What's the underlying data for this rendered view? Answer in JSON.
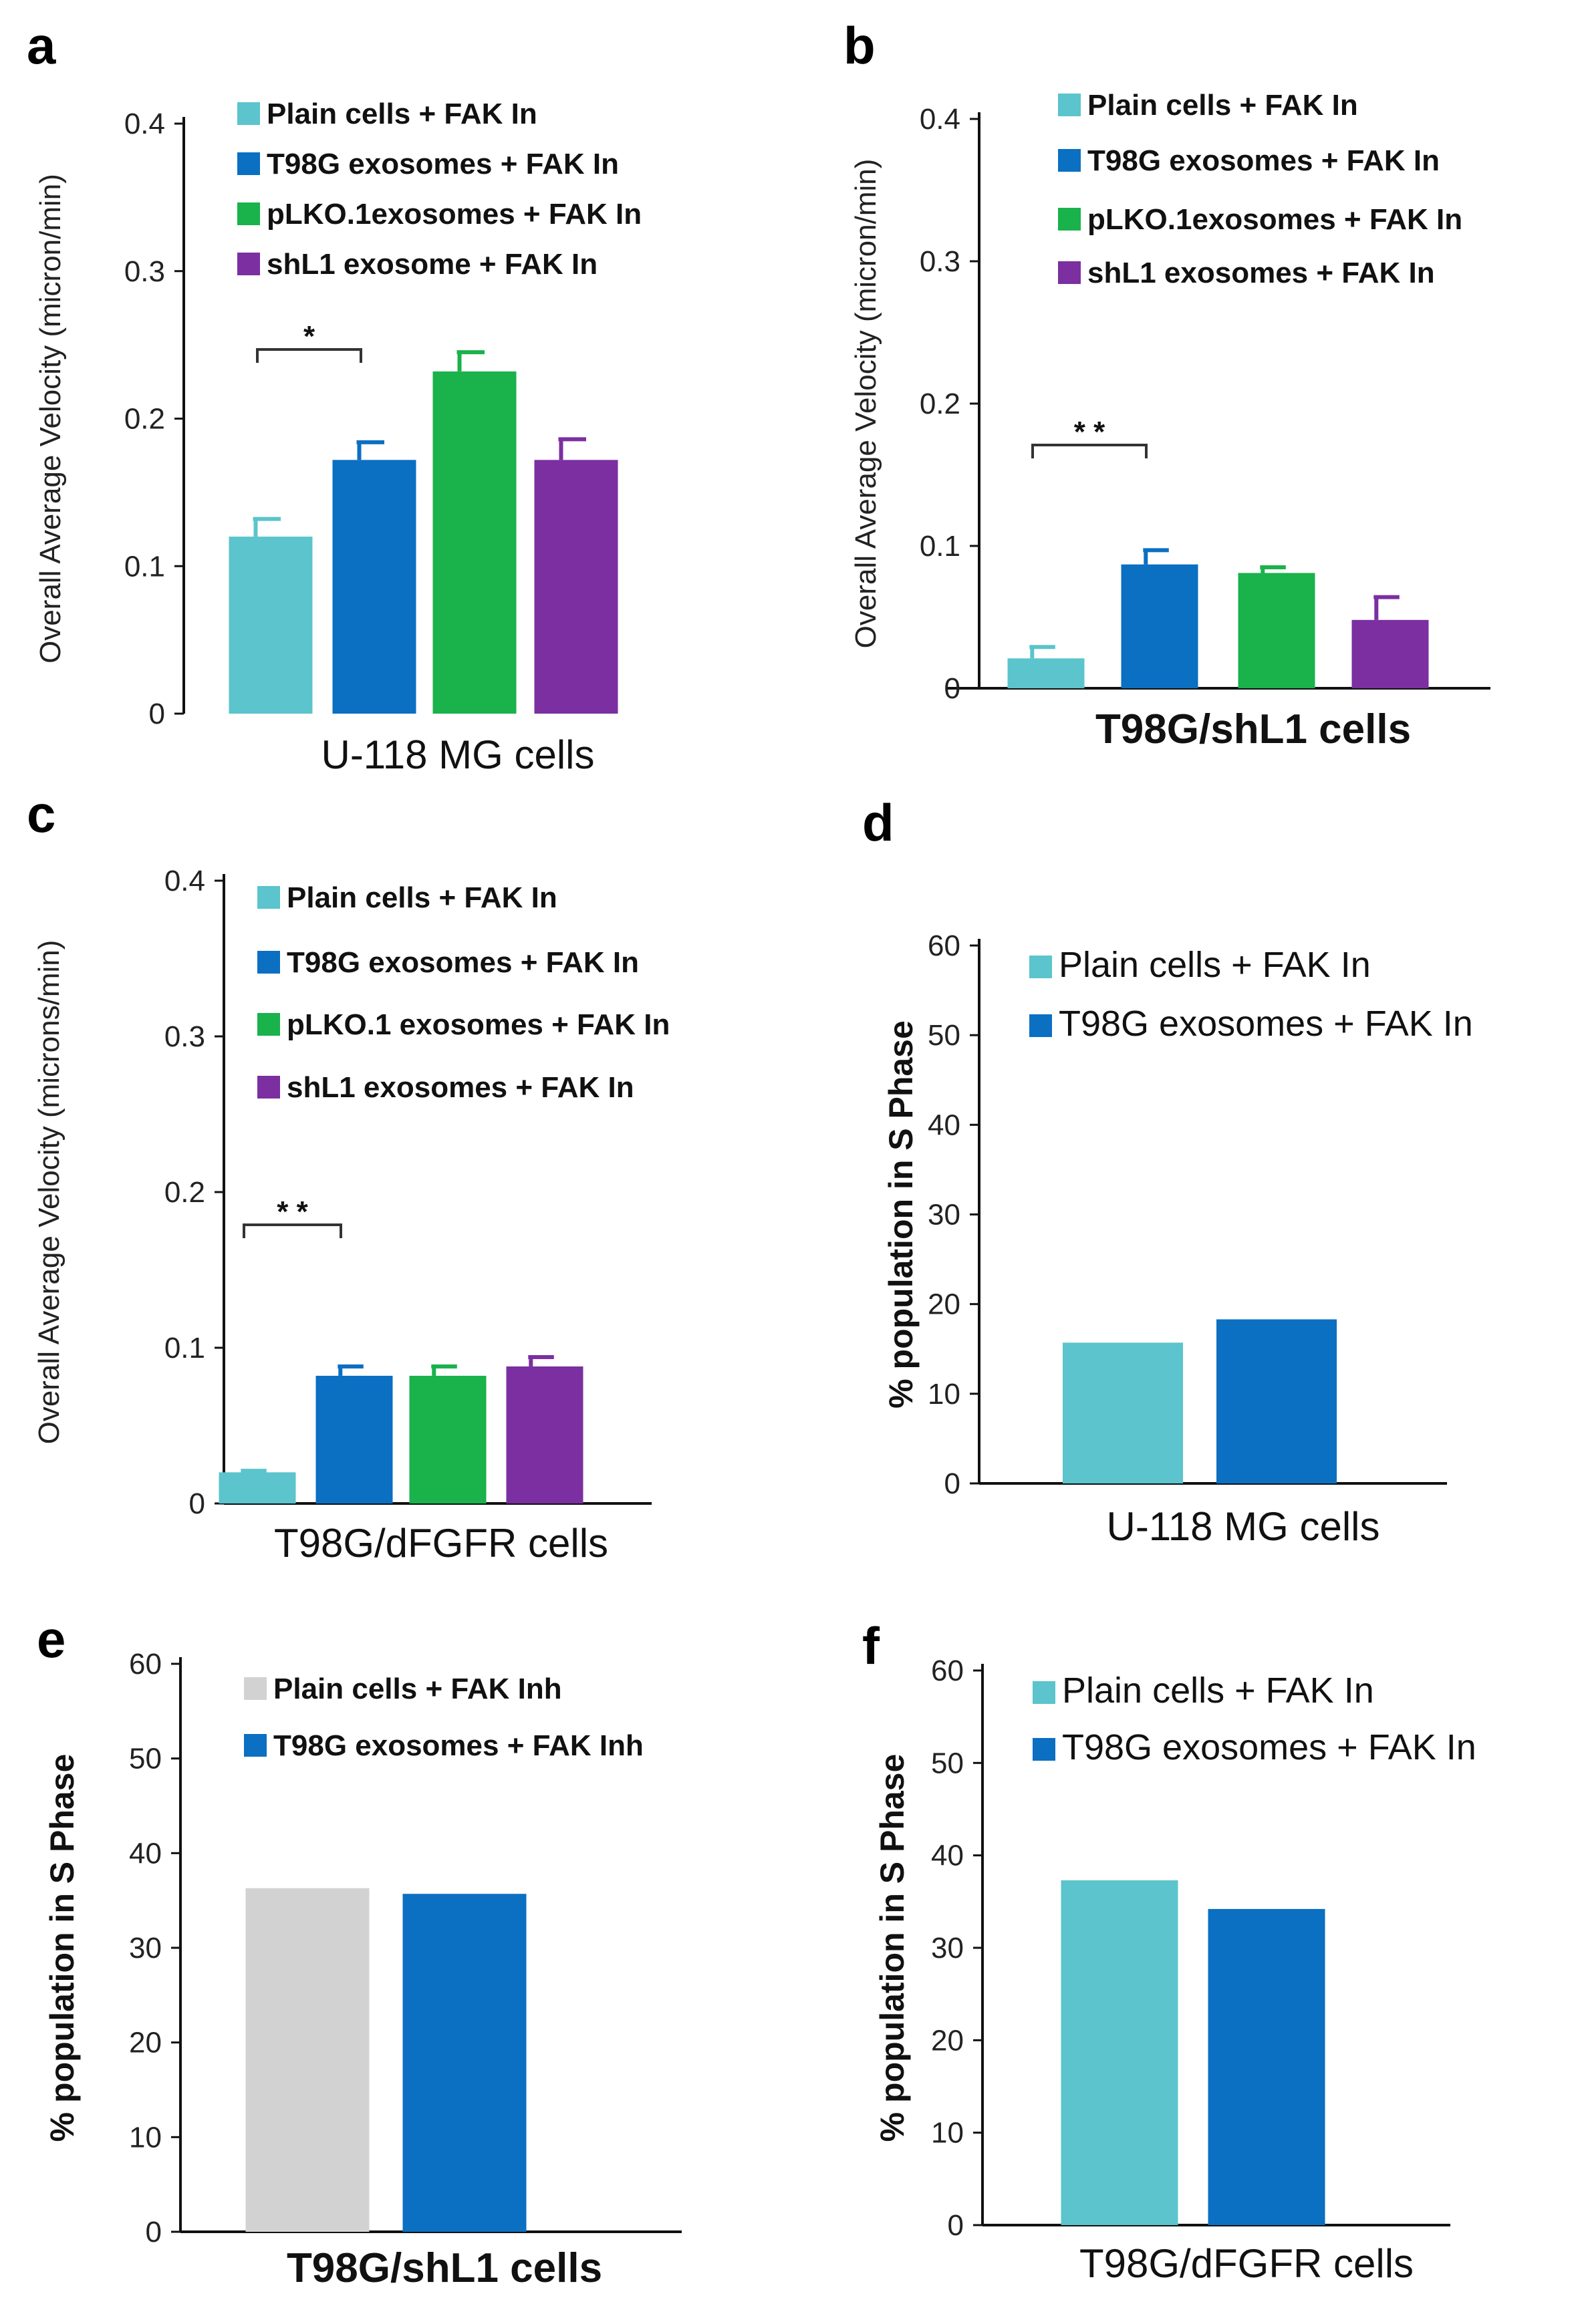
{
  "figure": {
    "colors": {
      "plain": "#5BC4CC",
      "t98g": "#0B6FC2",
      "plko": "#19B24B",
      "shl1": "#7B2FA0",
      "plain_grey": "#D2D2D2",
      "axis": "#111111"
    }
  },
  "chart_data": [
    {
      "panel": "a",
      "type": "bar",
      "xlabel": "U-118 MG cells",
      "ylabel": "Overall Average Velocity (micron/min)",
      "ylim": [
        0,
        0.4
      ],
      "yticks": [
        "0",
        "0.1",
        "0.2",
        "0.3",
        "0.4"
      ],
      "categories": [
        "Plain cells + FAK In",
        "T98G exosomes + FAK In",
        "pLKO.1exosomes + FAK In",
        "shL1 exosome + FAK In"
      ],
      "values": [
        0.12,
        0.172,
        0.232,
        0.172
      ],
      "errors": [
        0.012,
        0.012,
        0.013,
        0.014
      ],
      "colors": [
        "plain",
        "t98g",
        "plko",
        "shl1"
      ],
      "significance": [
        {
          "from": 0,
          "to": 1,
          "label": "*"
        }
      ]
    },
    {
      "panel": "b",
      "type": "bar",
      "xlabel": "T98G/shL1 cells",
      "ylabel": "Overall Average Velocity (micron/min)",
      "ylim": [
        0,
        0.4
      ],
      "yticks": [
        "0",
        "0.1",
        "0.2",
        "0.3",
        "0.4"
      ],
      "categories": [
        "Plain cells + FAK In",
        "T98G exosomes + FAK In",
        "pLKO.1exosomes + FAK In",
        "shL1 exosomes + FAK In"
      ],
      "values": [
        0.021,
        0.087,
        0.081,
        0.048
      ],
      "errors": [
        0.008,
        0.01,
        0.004,
        0.016
      ],
      "colors": [
        "plain",
        "t98g",
        "plko",
        "shl1"
      ],
      "significance": [
        {
          "from": 0,
          "to": 1,
          "label": "* *"
        }
      ]
    },
    {
      "panel": "c",
      "type": "bar",
      "xlabel": "T98G/dFGFR cells",
      "ylabel": "Overall Average Velocity (microns/min)",
      "ylim": [
        0,
        0.4
      ],
      "yticks": [
        "0",
        "0.1",
        "0.2",
        "0.3",
        "0.4"
      ],
      "categories": [
        "Plain cells + FAK In",
        "T98G exosomes + FAK In",
        "pLKO.1 exosomes + FAK In",
        "shL1 exosomes + FAK In"
      ],
      "values": [
        0.02,
        0.082,
        0.082,
        0.088
      ],
      "errors": [
        0.001,
        0.006,
        0.006,
        0.006
      ],
      "colors": [
        "plain",
        "t98g",
        "plko",
        "shl1"
      ],
      "significance": [
        {
          "from": 0,
          "to": 1,
          "label": "* *"
        }
      ]
    },
    {
      "panel": "d",
      "type": "bar",
      "xlabel": "U-118 MG cells",
      "ylabel": "% population in S Phase",
      "ylim": [
        0,
        60
      ],
      "yticks": [
        "0",
        "10",
        "20",
        "30",
        "40",
        "50",
        "60"
      ],
      "categories": [
        "Plain cells + FAK In",
        "T98G exosomes + FAK In"
      ],
      "values": [
        15.7,
        18.3
      ],
      "colors": [
        "plain",
        "t98g"
      ]
    },
    {
      "panel": "e",
      "type": "bar",
      "xlabel": "T98G/shL1 cells",
      "ylabel": "% population in S Phase",
      "ylim": [
        0,
        60
      ],
      "yticks": [
        "0",
        "10",
        "20",
        "30",
        "40",
        "50",
        "60"
      ],
      "categories": [
        "Plain cells + FAK Inh",
        "T98G exosomes + FAK Inh"
      ],
      "values": [
        36.3,
        35.7
      ],
      "colors": [
        "plain_grey",
        "t98g"
      ]
    },
    {
      "panel": "f",
      "type": "bar",
      "xlabel": "T98G/dFGFR cells",
      "ylabel": "% population in S Phase",
      "ylim": [
        0,
        60
      ],
      "yticks": [
        "0",
        "10",
        "20",
        "30",
        "40",
        "50",
        "60"
      ],
      "categories": [
        "Plain cells + FAK In",
        "T98G exosomes + FAK In"
      ],
      "values": [
        37.3,
        34.2
      ],
      "colors": [
        "plain",
        "t98g"
      ]
    }
  ]
}
